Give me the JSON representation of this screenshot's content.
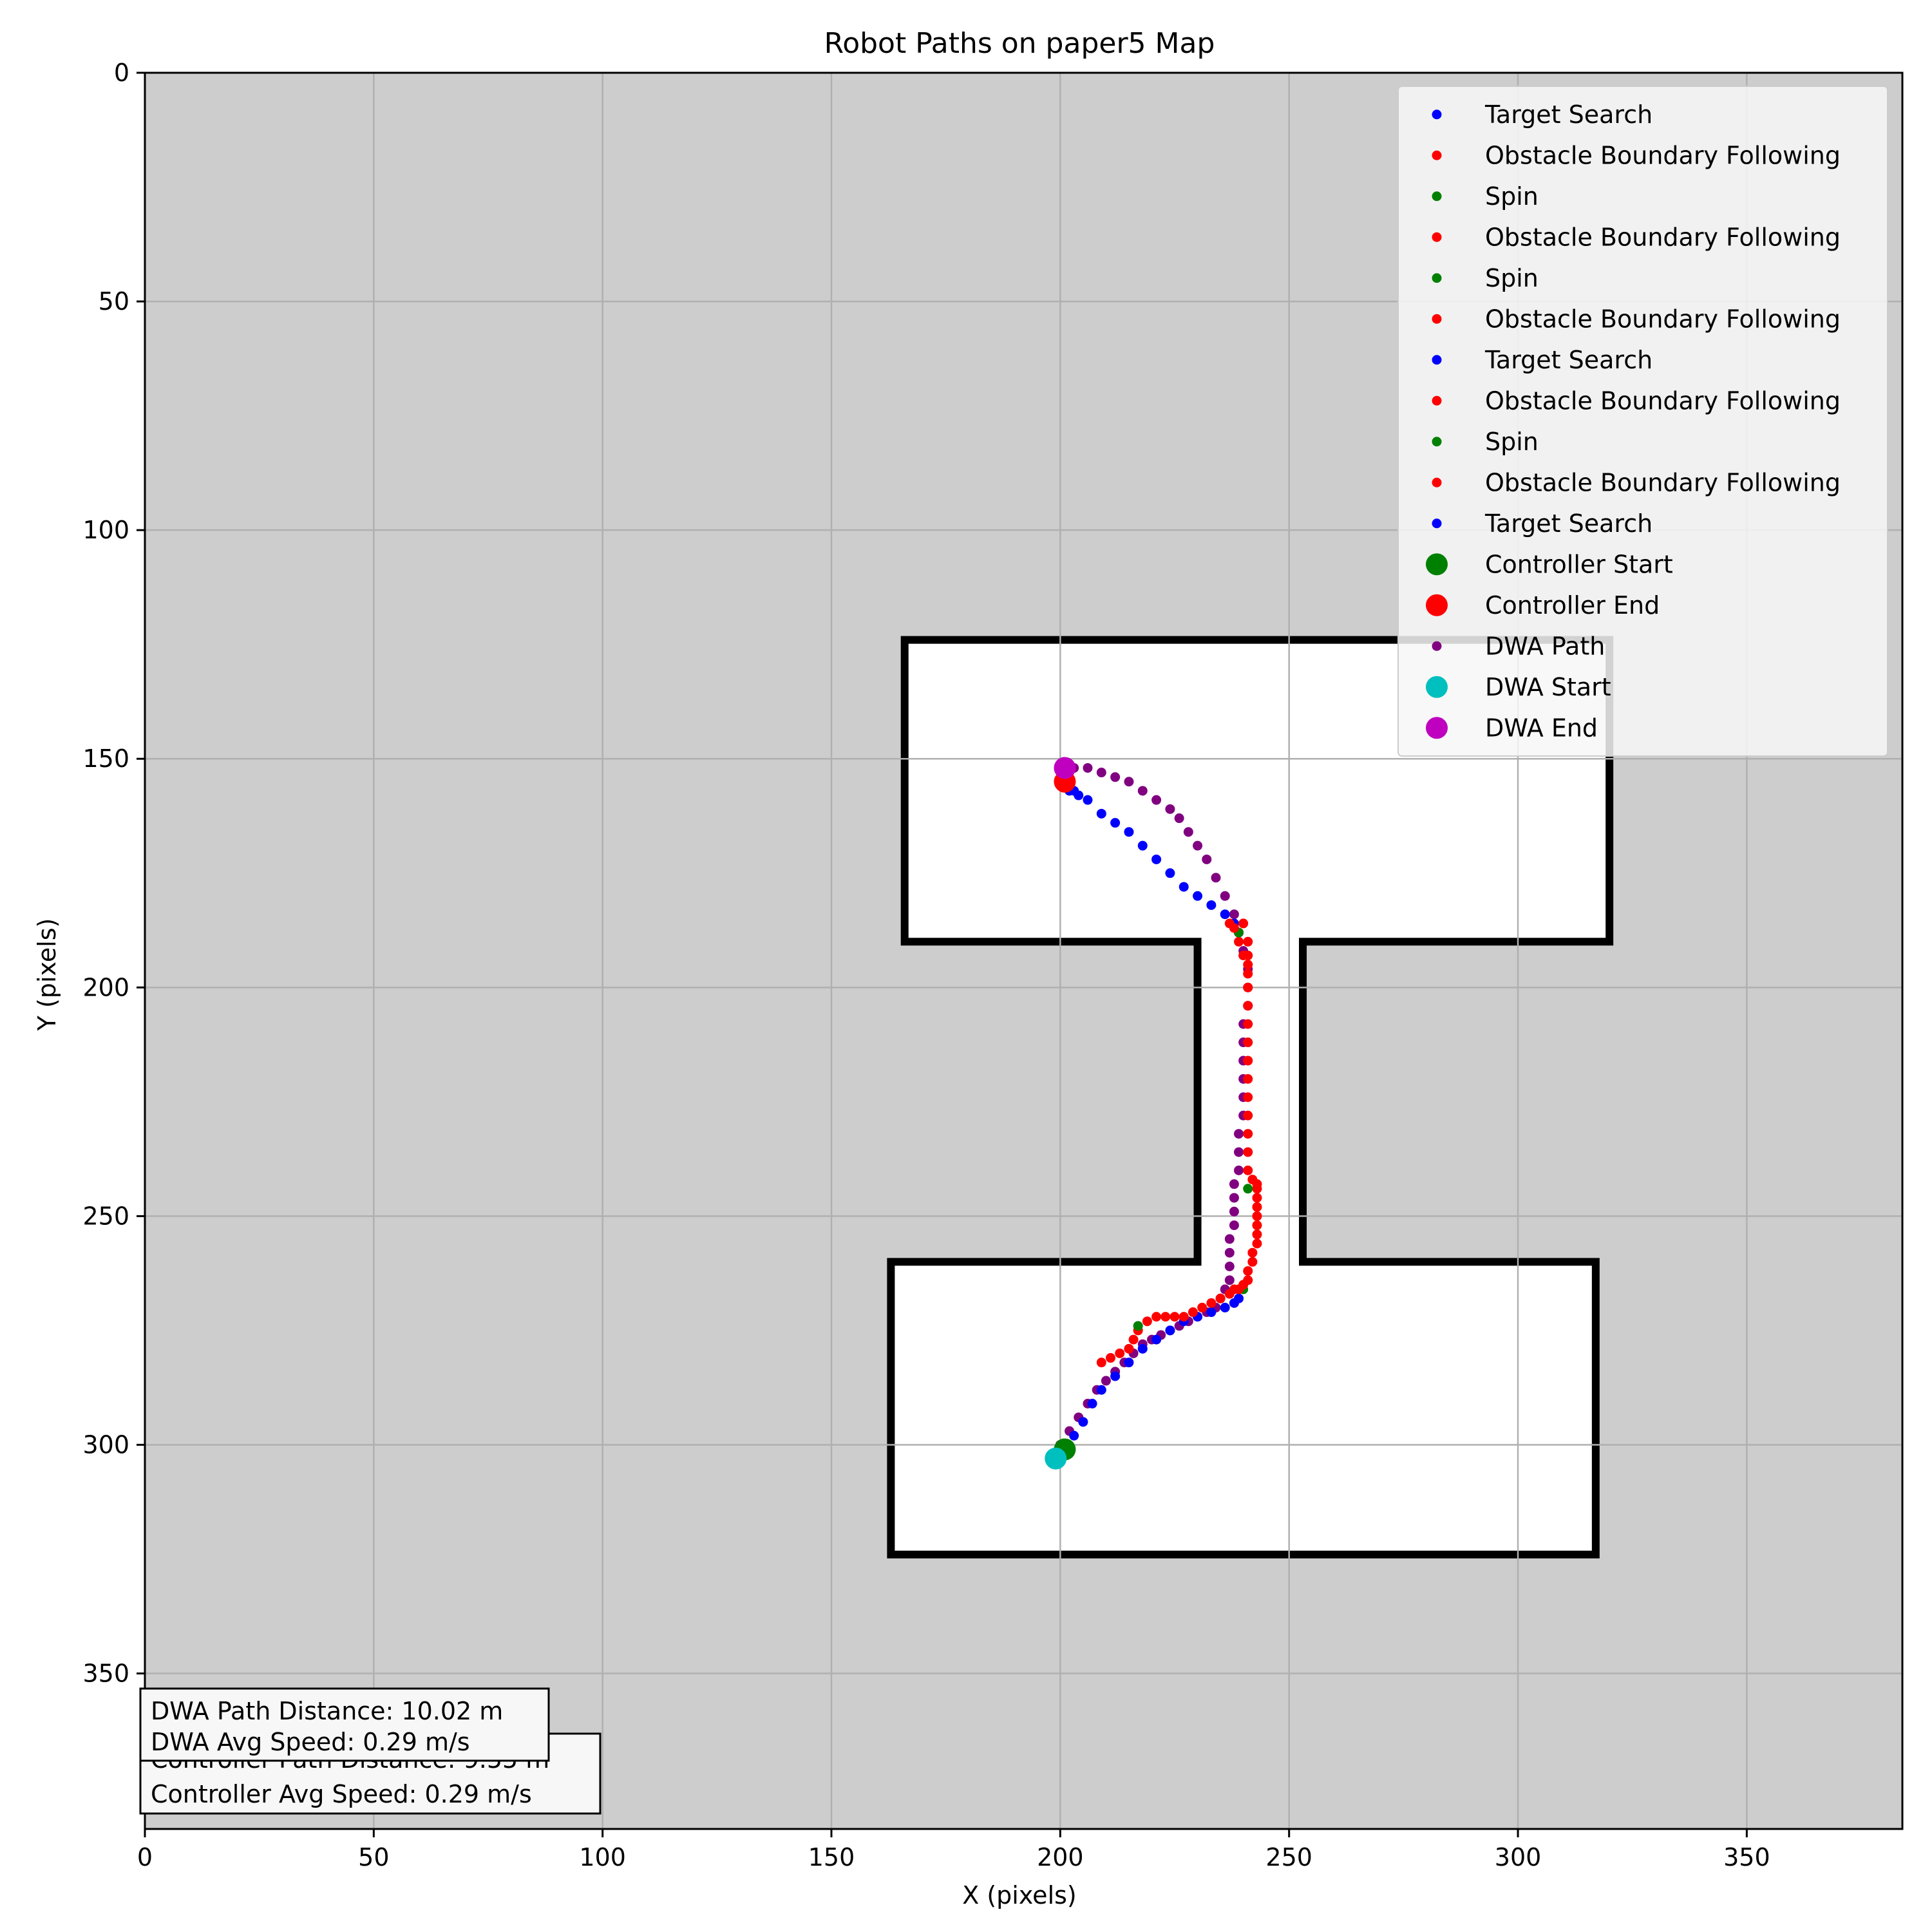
{
  "chart_data": {
    "type": "scatter",
    "title": "Robot Paths on paper5 Map",
    "xlabel": "X (pixels)",
    "ylabel": "Y (pixels)",
    "xlim": [
      0,
      384
    ],
    "ylim": [
      384,
      0
    ],
    "x_ticks": [
      0,
      50,
      100,
      150,
      200,
      250,
      300,
      350
    ],
    "y_ticks": [
      0,
      50,
      100,
      150,
      200,
      250,
      300,
      350
    ],
    "grid": true,
    "legend_position": "upper right",
    "map": {
      "background": "#cdcdcd",
      "free_space": "#ffffff",
      "wall": "#000000",
      "outline": [
        [
          166,
          124
        ],
        [
          320,
          124
        ],
        [
          320,
          190
        ],
        [
          253,
          190
        ],
        [
          253,
          260
        ],
        [
          317,
          260
        ],
        [
          317,
          324
        ],
        [
          163,
          324
        ],
        [
          163,
          260
        ],
        [
          230,
          260
        ],
        [
          230,
          190
        ],
        [
          166,
          190
        ]
      ]
    },
    "legend": [
      {
        "label": "Target Search",
        "color": "#0000ff",
        "marker": "small"
      },
      {
        "label": "Obstacle Boundary Following",
        "color": "#ff0000",
        "marker": "small"
      },
      {
        "label": "Spin",
        "color": "#008000",
        "marker": "small"
      },
      {
        "label": "Obstacle Boundary Following",
        "color": "#ff0000",
        "marker": "small"
      },
      {
        "label": "Spin",
        "color": "#008000",
        "marker": "small"
      },
      {
        "label": "Obstacle Boundary Following",
        "color": "#ff0000",
        "marker": "small"
      },
      {
        "label": "Target Search",
        "color": "#0000ff",
        "marker": "small"
      },
      {
        "label": "Obstacle Boundary Following",
        "color": "#ff0000",
        "marker": "small"
      },
      {
        "label": "Spin",
        "color": "#008000",
        "marker": "small"
      },
      {
        "label": "Obstacle Boundary Following",
        "color": "#ff0000",
        "marker": "small"
      },
      {
        "label": "Target Search",
        "color": "#0000ff",
        "marker": "small"
      },
      {
        "label": "Controller Start",
        "color": "#008000",
        "marker": "large"
      },
      {
        "label": "Controller End",
        "color": "#ff0000",
        "marker": "large"
      },
      {
        "label": "DWA Path",
        "color": "#800080",
        "marker": "small"
      },
      {
        "label": "DWA Start",
        "color": "#00bfbf",
        "marker": "large"
      },
      {
        "label": "DWA End",
        "color": "#bf00bf",
        "marker": "large"
      }
    ],
    "series": [
      {
        "name": "Target Search",
        "color": "#0000ff",
        "x": [
          201,
          203,
          205,
          207,
          209,
          212,
          215,
          218,
          221,
          224,
          227,
          230,
          233,
          236,
          238,
          239
        ],
        "y": [
          301,
          298,
          295,
          291,
          288,
          285,
          282,
          279,
          277,
          275,
          273,
          272,
          271,
          270,
          269,
          268
        ]
      },
      {
        "name": "Obstacle Boundary Following",
        "color": "#ff0000",
        "x": [
          209,
          211,
          213,
          215,
          216,
          217,
          219,
          221,
          223,
          225,
          227,
          229,
          231,
          233,
          235,
          237,
          238
        ],
        "y": [
          282,
          281,
          280,
          279,
          277,
          275,
          273,
          272,
          272,
          272,
          272,
          271,
          270,
          269,
          268,
          267,
          266
        ]
      },
      {
        "name": "Spin",
        "color": "#008000",
        "x": [
          217,
          240
        ],
        "y": [
          274,
          266
        ]
      },
      {
        "name": "Obstacle Boundary Following",
        "color": "#ff0000",
        "x": [
          239,
          240,
          241,
          241,
          242,
          242,
          243,
          243,
          243,
          243,
          243,
          243,
          243,
          243
        ],
        "y": [
          266,
          265,
          264,
          262,
          260,
          258,
          256,
          254,
          252,
          250,
          248,
          246,
          244,
          243
        ]
      },
      {
        "name": "Spin",
        "color": "#008000",
        "x": [
          241
        ],
        "y": [
          244
        ]
      },
      {
        "name": "Obstacle Boundary Following",
        "color": "#ff0000",
        "x": [
          242,
          241,
          241,
          241,
          241,
          241,
          241,
          241,
          241,
          241,
          241,
          241,
          241,
          241,
          241,
          241
        ],
        "y": [
          242,
          240,
          236,
          232,
          228,
          224,
          220,
          216,
          212,
          208,
          204,
          200,
          197,
          195,
          193,
          190
        ]
      },
      {
        "name": "Target Search",
        "color": "#0000ff",
        "x": [
          238,
          236,
          233,
          230,
          227,
          224,
          221,
          218,
          215,
          212,
          209,
          206,
          204,
          202
        ],
        "y": [
          186,
          184,
          182,
          180,
          178,
          175,
          172,
          169,
          166,
          164,
          162,
          159,
          158,
          157
        ]
      },
      {
        "name": "Obstacle Boundary Following",
        "color": "#ff0000",
        "x": [
          240,
          239,
          239,
          240
        ],
        "y": [
          193,
          190,
          188,
          186
        ]
      },
      {
        "name": "Spin",
        "color": "#008000",
        "x": [
          239
        ],
        "y": [
          188
        ]
      },
      {
        "name": "Obstacle Boundary Following",
        "color": "#ff0000",
        "x": [
          238,
          237
        ],
        "y": [
          187,
          186
        ]
      },
      {
        "name": "Target Search",
        "color": "#0000ff",
        "x": [
          203,
          202,
          201
        ],
        "y": [
          157,
          156,
          155
        ]
      },
      {
        "name": "Controller Start",
        "color": "#008000",
        "x": [
          201
        ],
        "y": [
          301
        ]
      },
      {
        "name": "Controller End",
        "color": "#ff0000",
        "x": [
          201
        ],
        "y": [
          155
        ]
      },
      {
        "name": "DWA Path",
        "color": "#800080",
        "x": [
          200,
          202,
          204,
          206,
          208,
          210,
          212,
          214,
          216,
          218,
          220,
          222,
          224,
          226,
          228,
          230,
          232,
          234,
          235,
          236,
          237,
          237,
          237,
          237,
          238,
          238,
          238,
          238,
          239,
          239,
          239,
          240,
          240,
          240,
          240,
          240,
          240,
          241,
          241,
          241,
          240,
          239,
          238,
          236,
          234,
          232,
          230,
          228,
          226,
          224,
          221,
          218,
          215,
          212,
          209,
          206,
          203
        ],
        "y": [
          300,
          297,
          294,
          291,
          288,
          286,
          284,
          282,
          280,
          278,
          277,
          276,
          275,
          274,
          273,
          272,
          271,
          270,
          268,
          266,
          264,
          261,
          258,
          255,
          252,
          249,
          246,
          243,
          240,
          236,
          232,
          228,
          224,
          220,
          216,
          212,
          208,
          204,
          200,
          196,
          192,
          188,
          184,
          180,
          176,
          172,
          169,
          166,
          163,
          161,
          159,
          157,
          155,
          154,
          153,
          152,
          152
        ]
      },
      {
        "name": "DWA Start",
        "color": "#00bfbf",
        "x": [
          199
        ],
        "y": [
          303
        ]
      },
      {
        "name": "DWA End",
        "color": "#bf00bf",
        "x": [
          201
        ],
        "y": [
          152
        ]
      }
    ],
    "annotations": {
      "controller_distance": "Controller Path Distance: 9.55 m",
      "controller_speed": "Controller Avg Speed: 0.29 m/s",
      "dwa_distance": "DWA Path Distance: 10.02 m",
      "dwa_speed": "DWA Avg Speed: 0.29 m/s"
    }
  }
}
